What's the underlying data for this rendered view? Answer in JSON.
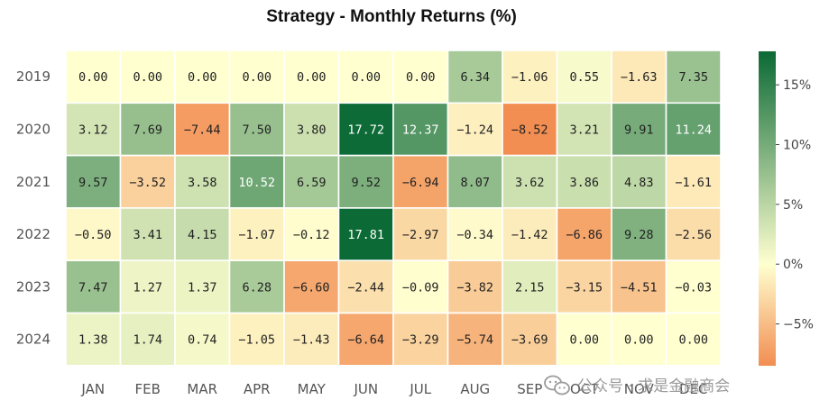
{
  "chart_data": {
    "type": "heatmap",
    "title": "Strategy - Monthly Returns (%)",
    "columns": [
      "JAN",
      "FEB",
      "MAR",
      "APR",
      "MAY",
      "JUN",
      "JUL",
      "AUG",
      "SEP",
      "OCT",
      "NOV",
      "DEC"
    ],
    "rows": [
      "2019",
      "2020",
      "2021",
      "2022",
      "2023",
      "2024"
    ],
    "values": [
      [
        0.0,
        0.0,
        0.0,
        0.0,
        0.0,
        0.0,
        0.0,
        6.34,
        -1.06,
        0.55,
        -1.63,
        7.35
      ],
      [
        3.12,
        7.69,
        -7.44,
        7.5,
        3.8,
        17.72,
        12.37,
        -1.24,
        -8.52,
        3.21,
        9.91,
        11.24
      ],
      [
        9.57,
        -3.52,
        3.58,
        10.52,
        6.59,
        9.52,
        -6.94,
        8.07,
        3.62,
        3.86,
        4.83,
        -1.61
      ],
      [
        -0.5,
        3.41,
        4.15,
        -1.07,
        -0.12,
        17.81,
        -2.97,
        -0.34,
        -1.42,
        -6.86,
        9.28,
        -2.56
      ],
      [
        7.47,
        1.27,
        1.37,
        6.28,
        -6.6,
        -2.44,
        -0.09,
        -3.82,
        2.15,
        -3.15,
        -4.51,
        -0.03
      ],
      [
        1.38,
        1.74,
        0.74,
        -1.05,
        -1.43,
        -6.64,
        -3.29,
        -5.74,
        -3.69,
        0.0,
        0.0,
        0.0
      ]
    ],
    "colorbar": {
      "range": [
        -8.5,
        17.8
      ],
      "ticks": [
        -5,
        0,
        5,
        10,
        15
      ],
      "tick_labels": [
        "−5%",
        "0%",
        "5%",
        "10%",
        "15%"
      ],
      "colors": [
        "#f28e52",
        "#ffffd0",
        "#0b6a35"
      ]
    }
  },
  "watermark": "公众号 · 求是金融商会"
}
